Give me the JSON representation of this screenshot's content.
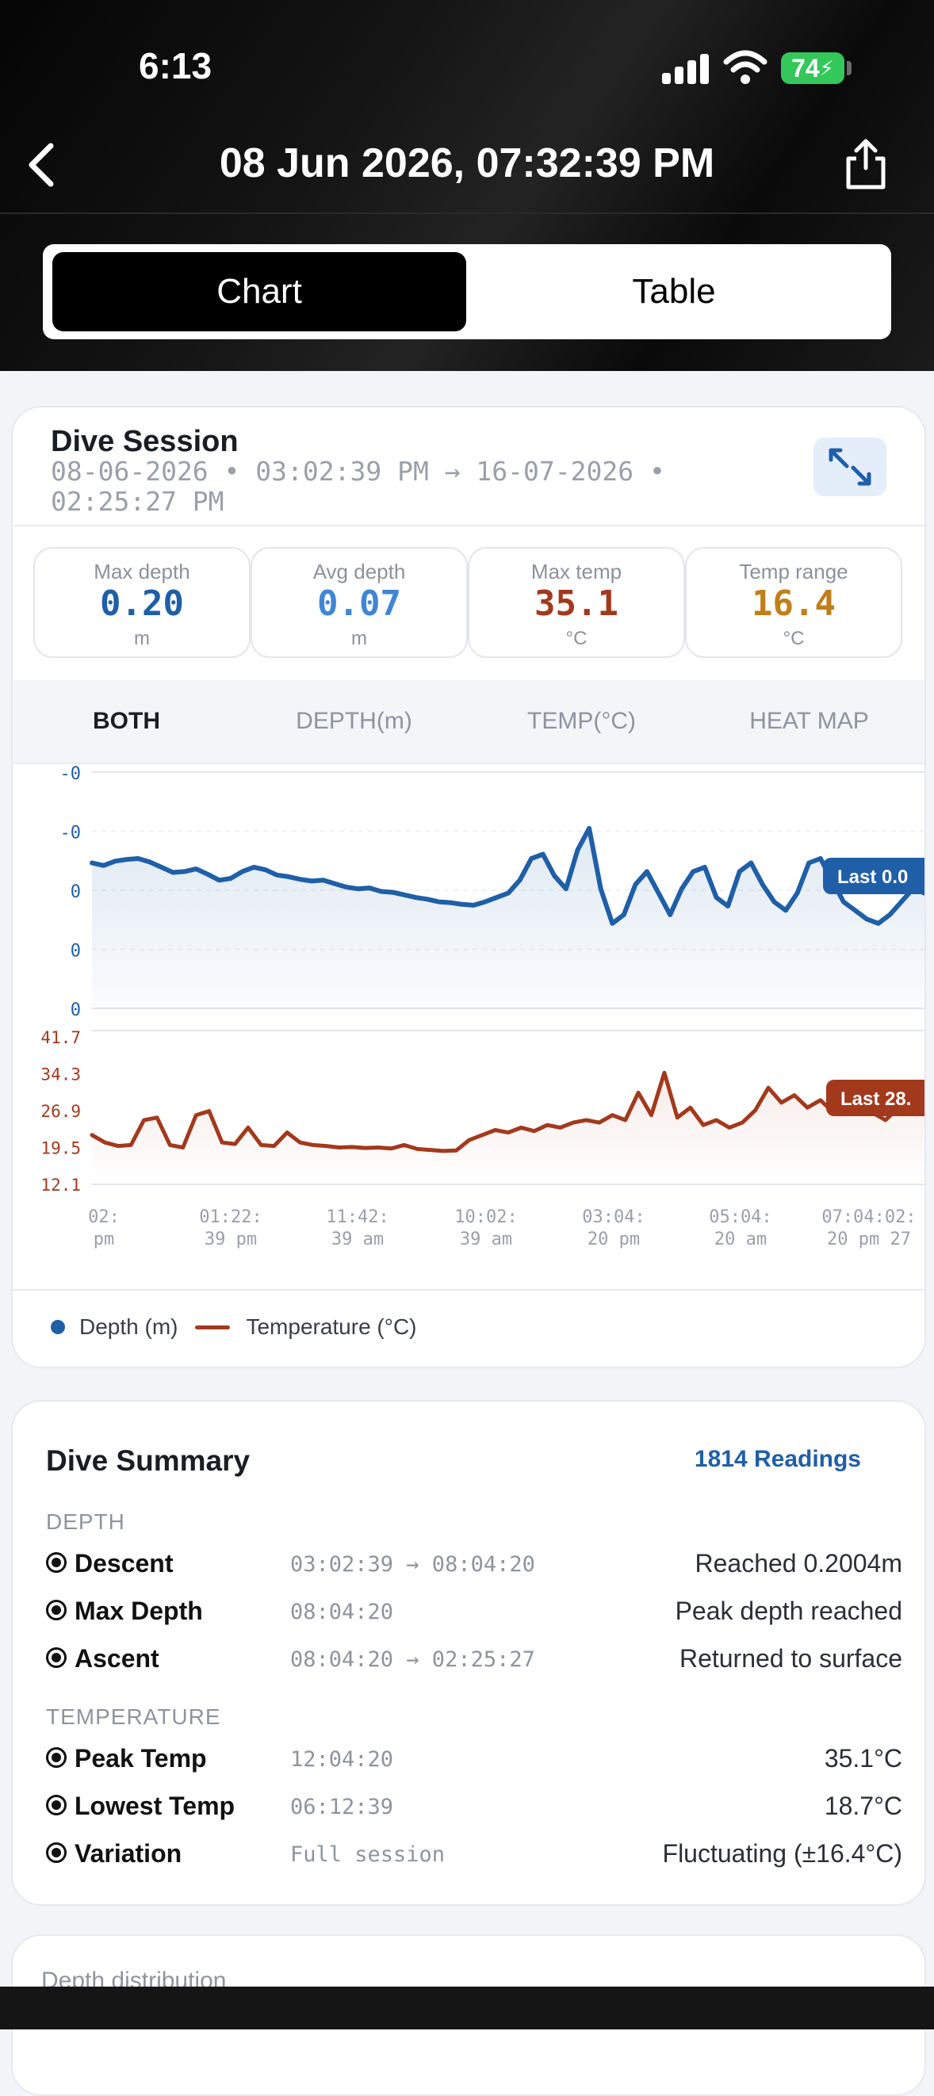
{
  "status_bar": {
    "time": "6:13",
    "battery": "74"
  },
  "nav": {
    "title": "08 Jun 2026, 07:32:39 PM"
  },
  "view_toggle": {
    "chart_label": "Chart",
    "table_label": "Table",
    "selected": "Chart"
  },
  "session": {
    "title": "Dive Session",
    "range_line1": "08-06-2026 • 03:02:39 PM → 16-07-2026 •",
    "range_line2": "02:25:27 PM"
  },
  "stats": [
    {
      "label": "Max depth",
      "value": "0.20",
      "unit": "m",
      "color": "#1f5fa8"
    },
    {
      "label": "Avg depth",
      "value": "0.07",
      "unit": "m",
      "color": "#3f86d4"
    },
    {
      "label": "Max temp",
      "value": "35.1",
      "unit": "°C",
      "color": "#a3391c"
    },
    {
      "label": "Temp range",
      "value": "16.4",
      "unit": "°C",
      "color": "#c17f1a"
    }
  ],
  "chart_tabs": [
    "BOTH",
    "DEPTH(m)",
    "TEMP(°C)",
    "HEAT MAP"
  ],
  "chart_tab_selected": "BOTH",
  "chart_data": {
    "type": "line",
    "series": [
      {
        "name": "Depth (m)",
        "color": "#1f5fa8",
        "last_badge": "Last 0.0",
        "y_tick_labels": [
          "-0",
          "-0",
          "0",
          "0",
          "0"
        ],
        "values": [
          0.05,
          0.053,
          0.048,
          0.046,
          0.045,
          0.049,
          0.055,
          0.061,
          0.06,
          0.057,
          0.063,
          0.07,
          0.068,
          0.06,
          0.055,
          0.058,
          0.064,
          0.066,
          0.069,
          0.071,
          0.07,
          0.074,
          0.078,
          0.08,
          0.079,
          0.083,
          0.084,
          0.087,
          0.09,
          0.092,
          0.095,
          0.096,
          0.098,
          0.099,
          0.095,
          0.09,
          0.085,
          0.07,
          0.045,
          0.04,
          0.065,
          0.08,
          0.035,
          0.01,
          0.08,
          0.12,
          0.11,
          0.075,
          0.06,
          0.085,
          0.11,
          0.08,
          0.06,
          0.055,
          0.09,
          0.1,
          0.06,
          0.05,
          0.075,
          0.095,
          0.105,
          0.085,
          0.05,
          0.045,
          0.07,
          0.095,
          0.105,
          0.115,
          0.12,
          0.11,
          0.095,
          0.08,
          0.085
        ]
      },
      {
        "name": "Temperature (°C)",
        "color": "#a3391c",
        "last_badge": "Last 28.",
        "y_tick_labels": [
          "41.7",
          "34.3",
          "26.9",
          "19.5",
          "12.1"
        ],
        "values": [
          22.0,
          20.5,
          19.8,
          20.0,
          25.0,
          25.5,
          20.0,
          19.5,
          26.0,
          26.8,
          20.5,
          20.2,
          23.5,
          20.0,
          19.8,
          22.5,
          20.5,
          20.0,
          19.8,
          19.5,
          19.6,
          19.4,
          19.5,
          19.3,
          20.0,
          19.2,
          19.0,
          18.8,
          18.9,
          21.0,
          22.0,
          23.0,
          22.5,
          23.5,
          22.8,
          24.0,
          23.5,
          24.5,
          25.0,
          24.5,
          26.0,
          25.0,
          30.5,
          26.0,
          34.5,
          25.5,
          27.5,
          24.0,
          25.0,
          23.5,
          24.5,
          27.0,
          31.5,
          28.5,
          30.0,
          27.5,
          29.0,
          26.5,
          28.0,
          27.0,
          26.5,
          25.0,
          27.5,
          29.0,
          28.5
        ]
      }
    ],
    "x_tick_labels": [
      [
        "02:",
        "pm"
      ],
      [
        "01:22:",
        "39 pm"
      ],
      [
        "11:42:",
        "39 am"
      ],
      [
        "10:02:",
        "39 am"
      ],
      [
        "03:04:",
        "20 pm"
      ],
      [
        "05:04:",
        "20 am"
      ],
      [
        "07:04:02:",
        "20 pm 27"
      ]
    ],
    "legend": [
      "Depth (m)",
      "Temperature (°C)"
    ]
  },
  "summary": {
    "title": "Dive Summary",
    "readings": "1814 Readings",
    "depth_section": "DEPTH",
    "depth_rows": [
      {
        "name": "Descent",
        "time": "03:02:39 → 08:04:20",
        "desc": "Reached 0.2004m"
      },
      {
        "name": "Max Depth",
        "time": "08:04:20",
        "desc": "Peak depth reached"
      },
      {
        "name": "Ascent",
        "time": "08:04:20 → 02:25:27",
        "desc": "Returned to surface"
      }
    ],
    "temp_section": "TEMPERATURE",
    "temp_rows": [
      {
        "name": "Peak Temp",
        "time": "12:04:20",
        "desc": "35.1°C"
      },
      {
        "name": "Lowest Temp",
        "time": "06:12:39",
        "desc": "18.7°C"
      },
      {
        "name": "Variation",
        "time": "Full session",
        "desc": "Fluctuating (±16.4°C)"
      }
    ]
  },
  "distribution": {
    "label": "Depth distribution"
  }
}
